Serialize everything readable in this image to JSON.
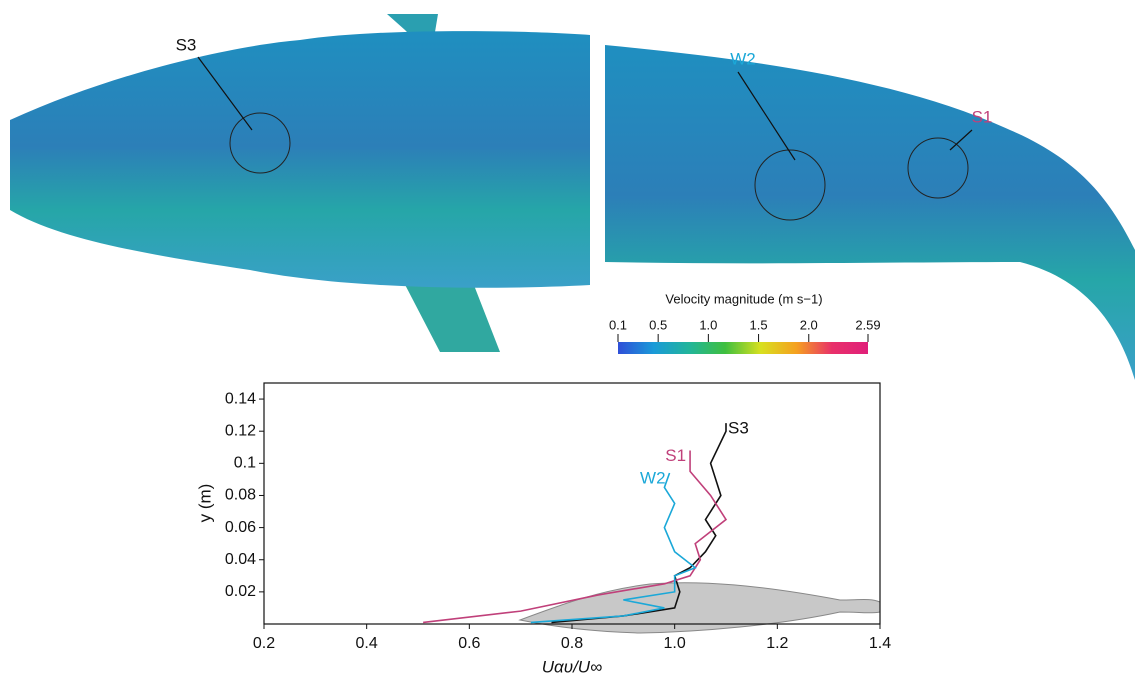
{
  "panels": {
    "left_labels": [
      "S3"
    ],
    "right_labels": [
      "W2",
      "S1"
    ]
  },
  "colorbar": {
    "title": "Velocity magnitude (m s−1)",
    "lim": [
      0.1,
      2.59
    ],
    "colors": [
      "#2f4fd8",
      "#1a9ad8",
      "#22b59a",
      "#3fbf3f",
      "#d8e020",
      "#f5a020",
      "#e8306a",
      "#e0207a"
    ],
    "ticks": [
      0.1,
      0.5,
      {
        "value": 1,
        "label": "1.0"
      },
      1.5,
      {
        "value": 2,
        "label": "2.0"
      },
      2.59
    ]
  },
  "chart_data": {
    "type": "line",
    "x_label": "Uαυ/U∞",
    "y_label": "y (m)",
    "xlim": [
      0.2,
      1.4
    ],
    "ylim": [
      0,
      0.15
    ],
    "xticks": [
      0.2,
      0.4,
      0.6,
      0.8,
      {
        "value": 1,
        "label": "1.0"
      },
      1.2,
      1.4
    ],
    "yticks": [
      0.02,
      0.04,
      0.06,
      0.08,
      0.1,
      0.12,
      0.14
    ],
    "series": [
      {
        "name": "S3",
        "color": "#111111",
        "x": [
          0.76,
          0.9,
          1.0,
          1.01,
          1.0,
          1.03,
          1.06,
          1.08,
          1.06,
          1.09,
          1.07,
          1.1,
          1.1
        ],
        "values": [
          0.001,
          0.005,
          0.01,
          0.02,
          0.03,
          0.035,
          0.045,
          0.055,
          0.065,
          0.08,
          0.1,
          0.12,
          0.125
        ]
      },
      {
        "name": "S1",
        "color": "#c0407a",
        "x": [
          0.51,
          0.7,
          0.85,
          0.98,
          1.03,
          1.05,
          1.04,
          1.1,
          1.07,
          1.03,
          1.03
        ],
        "values": [
          0.001,
          0.008,
          0.018,
          0.025,
          0.03,
          0.04,
          0.05,
          0.065,
          0.08,
          0.095,
          0.108
        ]
      },
      {
        "name": "W2",
        "color": "#1ba8d8",
        "x": [
          0.72,
          0.9,
          0.98,
          0.9,
          1.0,
          1.0,
          1.04,
          1.0,
          0.98,
          1.0,
          0.98,
          0.99
        ],
        "values": [
          0.001,
          0.005,
          0.01,
          0.015,
          0.02,
          0.03,
          0.035,
          0.045,
          0.06,
          0.075,
          0.085,
          0.094
        ]
      }
    ]
  }
}
